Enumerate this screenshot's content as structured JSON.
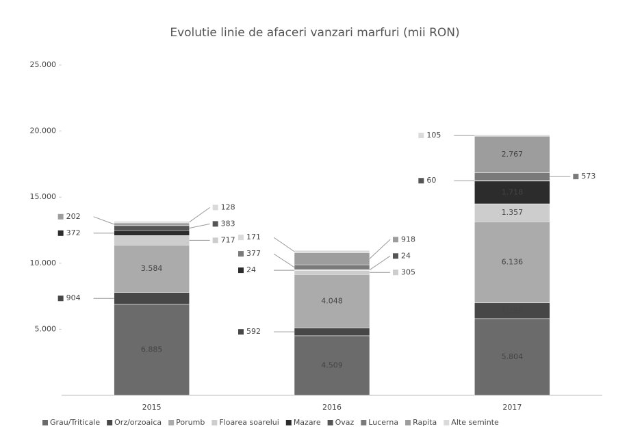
{
  "chart_data": {
    "type": "stacked_bar",
    "title": "Evolutie linie de afaceri vanzari marfuri (mii RON)",
    "categories": [
      "2015",
      "2016",
      "2017"
    ],
    "ylim": [
      0,
      25000
    ],
    "yticks": [
      {
        "value": 5000,
        "label": "5.000"
      },
      {
        "value": 10000,
        "label": "10.000"
      },
      {
        "value": 15000,
        "label": "15.000"
      },
      {
        "value": 20000,
        "label": "20.000"
      },
      {
        "value": 25000,
        "label": "25.000"
      }
    ],
    "legend": "bottom",
    "series": [
      {
        "name": "Grau/Triticale",
        "color": "#6b6b6b",
        "values": [
          6885,
          4509,
          5804
        ],
        "value_labels": [
          "6.885",
          "4.509",
          "5.804"
        ]
      },
      {
        "name": "Orz/orzoaica",
        "color": "#474747",
        "values": [
          904,
          592,
          1196
        ],
        "value_labels": [
          "904",
          "592",
          "1.196"
        ]
      },
      {
        "name": "Porumb",
        "color": "#ababab",
        "values": [
          3584,
          4048,
          6136
        ],
        "value_labels": [
          "3.584",
          "4.048",
          "6.136"
        ]
      },
      {
        "name": "Floarea soarelui",
        "color": "#cdcdcd",
        "values": [
          717,
          305,
          1357
        ],
        "value_labels": [
          "717",
          "305",
          "1.357"
        ]
      },
      {
        "name": "Mazare",
        "color": "#2c2c2c",
        "values": [
          372,
          24,
          1718
        ],
        "value_labels": [
          "372",
          "24",
          "1.718"
        ]
      },
      {
        "name": "Ovaz",
        "color": "#555555",
        "values": [
          383,
          24,
          60
        ],
        "value_labels": [
          "383",
          "24",
          "60"
        ]
      },
      {
        "name": "Lucerna",
        "color": "#7a7a7a",
        "values": [
          null,
          377,
          573
        ],
        "value_labels": [
          null,
          "377",
          "573"
        ]
      },
      {
        "name": "Rapita",
        "color": "#9d9d9d",
        "values": [
          202,
          918,
          2767
        ],
        "value_labels": [
          "202",
          "918",
          "2.767"
        ]
      },
      {
        "name": "Alte seminte",
        "color": "#dadada",
        "values": [
          128,
          171,
          105
        ],
        "value_labels": [
          "128",
          "171",
          "105"
        ]
      }
    ]
  }
}
